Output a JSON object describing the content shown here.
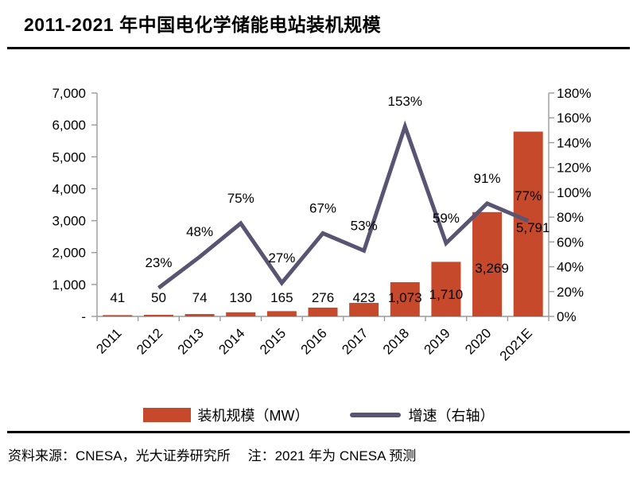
{
  "header": {
    "title": "2011-2021 年中国电化学储能电站装机规模"
  },
  "footer": {
    "source": "资料来源：CNESA，光大证券研究所",
    "note": "注：2021 年为 CNESA 预测"
  },
  "colors": {
    "bar": "#C6492B",
    "line": "#585472",
    "axis": "#9B9B9B",
    "label_text": "#000000"
  },
  "chart_data": {
    "type": "bar",
    "subtype": "combo bar + line, dual axis",
    "title": "2011-2021 年中国电化学储能电站装机规模",
    "categories": [
      "2011",
      "2012",
      "2013",
      "2014",
      "2015",
      "2016",
      "2017",
      "2018",
      "2019",
      "2020",
      "2021E"
    ],
    "series": [
      {
        "name": "装机规模（MW）",
        "chart_type": "bar",
        "axis": "left",
        "color": "#C6492B",
        "values": [
          41,
          50,
          74,
          130,
          165,
          276,
          423,
          1073,
          1710,
          3269,
          5791
        ],
        "value_labels": [
          "41",
          "50",
          "74",
          "130",
          "165",
          "276",
          "423",
          "1,073",
          "1,710",
          "3,269",
          "5,791"
        ]
      },
      {
        "name": "增速（右轴）",
        "chart_type": "line",
        "axis": "right",
        "color": "#585472",
        "values": [
          null,
          23,
          48,
          75,
          27,
          67,
          53,
          153,
          59,
          91,
          77
        ],
        "value_labels": [
          "",
          "23%",
          "48%",
          "75%",
          "27%",
          "67%",
          "53%",
          "153%",
          "59%",
          "91%",
          "77%"
        ]
      }
    ],
    "left_axis": {
      "min": 0,
      "max": 7000,
      "step": 1000,
      "tick_labels": [
        "-",
        "1,000",
        "2,000",
        "3,000",
        "4,000",
        "5,000",
        "6,000",
        "7,000"
      ]
    },
    "right_axis": {
      "min": 0,
      "max": 180,
      "step": 20,
      "unit": "%",
      "tick_labels": [
        "0%",
        "20%",
        "40%",
        "60%",
        "80%",
        "100%",
        "120%",
        "140%",
        "160%",
        "180%"
      ]
    },
    "gridlines": false,
    "legend_position": "bottom",
    "x_label_rotation_deg": -45
  }
}
